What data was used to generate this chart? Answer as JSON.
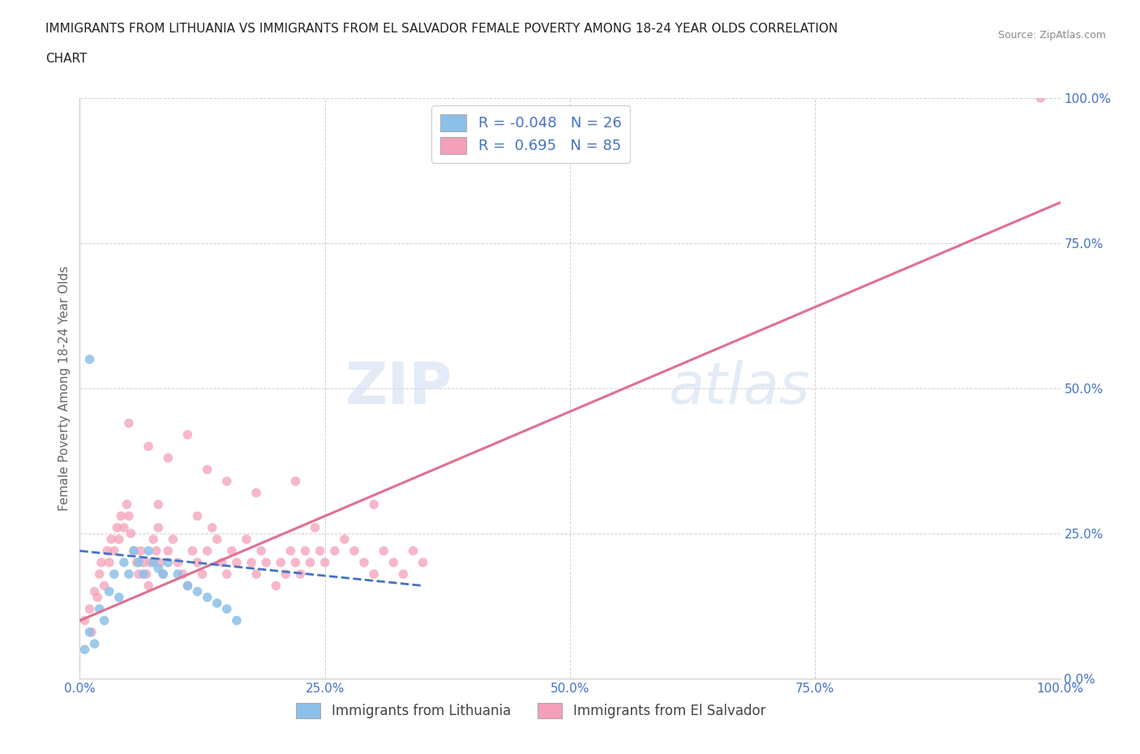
{
  "title_line1": "IMMIGRANTS FROM LITHUANIA VS IMMIGRANTS FROM EL SALVADOR FEMALE POVERTY AMONG 18-24 YEAR OLDS CORRELATION",
  "title_line2": "CHART",
  "source": "Source: ZipAtlas.com",
  "ylabel": "Female Poverty Among 18-24 Year Olds",
  "watermark_zip": "ZIP",
  "watermark_atlas": "atlas",
  "legend1_label": "Immigrants from Lithuania",
  "legend2_label": "Immigrants from El Salvador",
  "R1": -0.048,
  "N1": 26,
  "R2": 0.695,
  "N2": 85,
  "color1": "#8cc0e8",
  "color2": "#f4a0b8",
  "line1_color": "#4472c4",
  "line2_color": "#e07090",
  "background": "#ffffff",
  "xlim": [
    0,
    1.0
  ],
  "ylim": [
    0,
    1.0
  ],
  "xtick_labels": [
    "0.0%",
    "25.0%",
    "50.0%",
    "75.0%",
    "100.0%"
  ],
  "xtick_values": [
    0.0,
    0.25,
    0.5,
    0.75,
    1.0
  ],
  "ytick_labels": [
    "0.0%",
    "25.0%",
    "50.0%",
    "75.0%",
    "100.0%"
  ],
  "ytick_values": [
    0.0,
    0.25,
    0.5,
    0.75,
    1.0
  ],
  "lit_x": [
    0.005,
    0.01,
    0.015,
    0.02,
    0.025,
    0.03,
    0.035,
    0.04,
    0.045,
    0.05,
    0.055,
    0.06,
    0.065,
    0.07,
    0.075,
    0.08,
    0.085,
    0.09,
    0.1,
    0.11,
    0.12,
    0.13,
    0.14,
    0.15,
    0.16,
    0.01
  ],
  "lit_y": [
    0.05,
    0.08,
    0.06,
    0.12,
    0.1,
    0.15,
    0.18,
    0.14,
    0.2,
    0.18,
    0.22,
    0.2,
    0.18,
    0.22,
    0.2,
    0.19,
    0.18,
    0.2,
    0.18,
    0.16,
    0.15,
    0.14,
    0.13,
    0.12,
    0.1,
    0.55
  ],
  "sal_x": [
    0.005,
    0.01,
    0.012,
    0.015,
    0.018,
    0.02,
    0.022,
    0.025,
    0.028,
    0.03,
    0.032,
    0.035,
    0.038,
    0.04,
    0.042,
    0.045,
    0.048,
    0.05,
    0.052,
    0.055,
    0.058,
    0.06,
    0.062,
    0.065,
    0.068,
    0.07,
    0.072,
    0.075,
    0.078,
    0.08,
    0.082,
    0.085,
    0.09,
    0.095,
    0.1,
    0.105,
    0.11,
    0.115,
    0.12,
    0.125,
    0.13,
    0.135,
    0.14,
    0.145,
    0.15,
    0.155,
    0.16,
    0.17,
    0.175,
    0.18,
    0.185,
    0.19,
    0.2,
    0.205,
    0.21,
    0.215,
    0.22,
    0.225,
    0.23,
    0.235,
    0.24,
    0.245,
    0.25,
    0.26,
    0.27,
    0.28,
    0.29,
    0.3,
    0.31,
    0.32,
    0.33,
    0.34,
    0.35,
    0.05,
    0.07,
    0.09,
    0.11,
    0.13,
    0.15,
    0.08,
    0.12,
    0.18,
    0.22,
    0.3,
    0.98
  ],
  "sal_y": [
    0.1,
    0.12,
    0.08,
    0.15,
    0.14,
    0.18,
    0.2,
    0.16,
    0.22,
    0.2,
    0.24,
    0.22,
    0.26,
    0.24,
    0.28,
    0.26,
    0.3,
    0.28,
    0.25,
    0.22,
    0.2,
    0.18,
    0.22,
    0.2,
    0.18,
    0.16,
    0.2,
    0.24,
    0.22,
    0.26,
    0.2,
    0.18,
    0.22,
    0.24,
    0.2,
    0.18,
    0.16,
    0.22,
    0.2,
    0.18,
    0.22,
    0.26,
    0.24,
    0.2,
    0.18,
    0.22,
    0.2,
    0.24,
    0.2,
    0.18,
    0.22,
    0.2,
    0.16,
    0.2,
    0.18,
    0.22,
    0.2,
    0.18,
    0.22,
    0.2,
    0.26,
    0.22,
    0.2,
    0.22,
    0.24,
    0.22,
    0.2,
    0.18,
    0.22,
    0.2,
    0.18,
    0.22,
    0.2,
    0.44,
    0.4,
    0.38,
    0.42,
    0.36,
    0.34,
    0.3,
    0.28,
    0.32,
    0.34,
    0.3,
    1.0
  ],
  "sal_line_x0": 0.0,
  "sal_line_y0": 0.1,
  "sal_line_x1": 1.0,
  "sal_line_y1": 0.82,
  "lit_line_x0": 0.0,
  "lit_line_y0": 0.22,
  "lit_line_x1": 0.35,
  "lit_line_y1": 0.16
}
